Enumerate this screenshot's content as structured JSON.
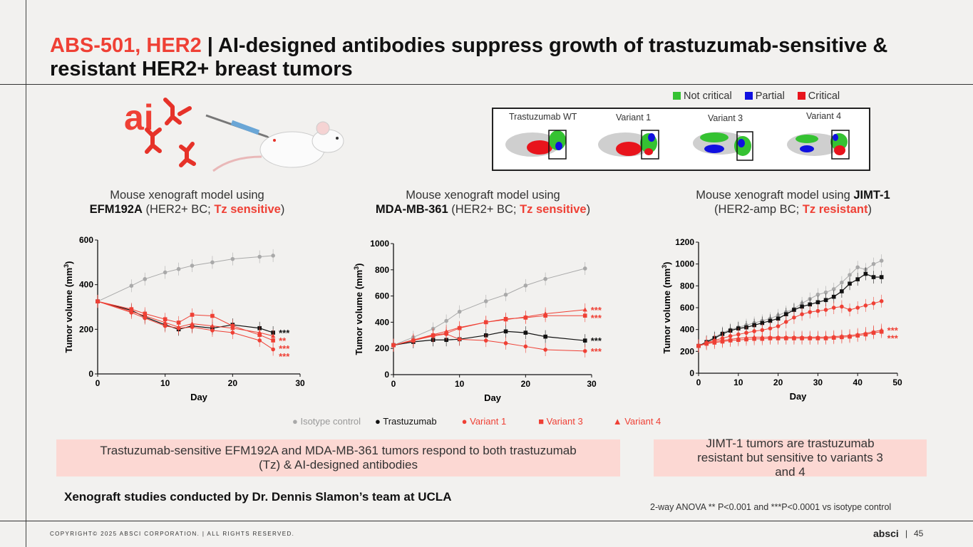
{
  "header": {
    "title_red": "ABS-501, HER2",
    "title_sep": " | ",
    "title_rest": "AI-designed antibodies suppress growth of trastuzumab-sensitive & resistant HER2+ breast tumors"
  },
  "logo_text": "ai",
  "structure_legend": {
    "items": [
      {
        "label": "Not critical",
        "color": "#35c232"
      },
      {
        "label": "Partial",
        "color": "#1010e0"
      },
      {
        "label": "Critical",
        "color": "#e8141c"
      }
    ]
  },
  "structure_panel": {
    "labels": [
      "Trastuzumab WT",
      "Variant 1",
      "Variant 3",
      "Variant 4"
    ]
  },
  "panels": [
    {
      "line1": "Mouse xenograft model using",
      "line2_bold": "EFM192A",
      "line2_mid": " (HER2+ BC; ",
      "line2_red": "Tz sensitive",
      "line2_end": ")"
    },
    {
      "line1": "Mouse xenograft model using",
      "line2_bold": "MDA-MB-361",
      "line2_mid": " (HER2+ BC; ",
      "line2_red": "Tz sensitive",
      "line2_end": ")"
    },
    {
      "line1": "Mouse xenograft model using ",
      "line1_bold": "JIMT-1",
      "line2_mid": "(HER2-amp BC; ",
      "line2_red": "Tz resistant",
      "line2_end": ")"
    }
  ],
  "series_legend": [
    {
      "marker": "●",
      "label": "Isotype control",
      "color": "#a9a9a9"
    },
    {
      "marker": "●",
      "label": "Trastuzumab",
      "color": "#111111"
    },
    {
      "marker": "●",
      "label": "Variant 1",
      "color": "#ef4035"
    },
    {
      "marker": "■",
      "label": "Variant 3",
      "color": "#ef4035"
    },
    {
      "marker": "▲",
      "label": "Variant 4",
      "color": "#ef4035"
    }
  ],
  "callouts": {
    "left": "Trastuzumab-sensitive EFM192A and MDA-MB-361 tumors respond to both trastuzumab (Tz) & AI-designed antibodies",
    "right": "JIMT-1 tumors are trastuzumab resistant but sensitive to variants 3 and 4"
  },
  "footer": {
    "credit": "Xenograft studies conducted by Dr. Dennis Slamon’s team at UCLA",
    "stats": "2-way ANOVA ** P<0.001 and ***P<0.0001 vs isotype control",
    "copyright": "COPYRIGHT© 2025 ABSCI CORPORATION.  |  ALL RIGHTS RESERVED.",
    "brand": "absci",
    "page_sep": "|",
    "page": "45"
  },
  "colors": {
    "accent": "#ef4035",
    "isotype": "#a9a9a9",
    "trastuzumab": "#111111",
    "variant": "#ef4035",
    "callout_bg": "#fcd8d3"
  },
  "chart_data": [
    {
      "type": "line",
      "xlabel": "Day",
      "ylabel": "Tumor volume (mm3)",
      "xlim": [
        0,
        30
      ],
      "ylim": [
        0,
        600
      ],
      "xticks": [
        0,
        10,
        20,
        30
      ],
      "yticks": [
        0,
        200,
        400,
        600
      ],
      "series": [
        {
          "name": "Isotype control",
          "x": [
            0,
            5,
            7,
            10,
            12,
            14,
            17,
            20,
            24,
            26
          ],
          "values": [
            325,
            395,
            425,
            455,
            470,
            485,
            500,
            515,
            525,
            530
          ]
        },
        {
          "name": "Trastuzumab",
          "x": [
            0,
            5,
            7,
            10,
            12,
            14,
            17,
            20,
            24,
            26
          ],
          "values": [
            325,
            285,
            255,
            220,
            200,
            215,
            205,
            220,
            205,
            185
          ],
          "sig": "***"
        },
        {
          "name": "Variant 1",
          "x": [
            0,
            5,
            7,
            10,
            12,
            14,
            17,
            20,
            24,
            26
          ],
          "values": [
            325,
            275,
            250,
            215,
            205,
            210,
            195,
            185,
            150,
            110
          ],
          "sig": "***"
        },
        {
          "name": "Variant 3",
          "x": [
            0,
            5,
            7,
            10,
            12,
            14,
            17,
            20,
            24,
            26
          ],
          "values": [
            325,
            290,
            270,
            245,
            230,
            265,
            260,
            215,
            175,
            150
          ],
          "sig": "***"
        },
        {
          "name": "Variant 4",
          "x": [
            0,
            5,
            7,
            10,
            12,
            14,
            17,
            20,
            24,
            26
          ],
          "values": [
            325,
            280,
            260,
            230,
            210,
            225,
            215,
            205,
            185,
            170
          ],
          "sig": "**"
        }
      ]
    },
    {
      "type": "line",
      "xlabel": "Day",
      "ylabel": "Tumor volume (mm3)",
      "xlim": [
        0,
        30
      ],
      "ylim": [
        0,
        1000
      ],
      "xticks": [
        0,
        10,
        20,
        30
      ],
      "yticks": [
        0,
        200,
        400,
        600,
        800,
        1000
      ],
      "series": [
        {
          "name": "Isotype control",
          "x": [
            0,
            3,
            6,
            8,
            10,
            14,
            17,
            20,
            23,
            29
          ],
          "values": [
            225,
            285,
            350,
            410,
            480,
            560,
            610,
            680,
            730,
            810
          ]
        },
        {
          "name": "Trastuzumab",
          "x": [
            0,
            3,
            6,
            8,
            10,
            14,
            17,
            20,
            23,
            29
          ],
          "values": [
            225,
            250,
            265,
            265,
            270,
            300,
            330,
            320,
            290,
            260
          ],
          "sig": "***"
        },
        {
          "name": "Variant 1",
          "x": [
            0,
            3,
            6,
            8,
            10,
            14,
            17,
            20,
            23,
            29
          ],
          "values": [
            225,
            260,
            295,
            310,
            270,
            260,
            240,
            215,
            190,
            180
          ],
          "sig": "***"
        },
        {
          "name": "Variant 3",
          "x": [
            0,
            3,
            6,
            8,
            10,
            14,
            17,
            20,
            23,
            29
          ],
          "values": [
            225,
            260,
            300,
            315,
            355,
            400,
            425,
            435,
            450,
            450
          ],
          "sig": "***"
        },
        {
          "name": "Variant 4",
          "x": [
            0,
            3,
            6,
            8,
            10,
            14,
            17,
            20,
            23,
            29
          ],
          "values": [
            225,
            265,
            305,
            330,
            360,
            400,
            420,
            440,
            465,
            495
          ],
          "sig": "***"
        }
      ]
    },
    {
      "type": "line",
      "xlabel": "Day",
      "ylabel": "Tumor volume (mm3)",
      "xlim": [
        0,
        50
      ],
      "ylim": [
        0,
        1200
      ],
      "xticks": [
        0,
        10,
        20,
        30,
        40,
        50
      ],
      "yticks": [
        0,
        200,
        400,
        600,
        800,
        1000,
        1200
      ],
      "series": [
        {
          "name": "Isotype control",
          "x": [
            0,
            2,
            4,
            6,
            8,
            10,
            12,
            14,
            16,
            18,
            20,
            22,
            24,
            26,
            28,
            30,
            32,
            34,
            36,
            38,
            40,
            42,
            44,
            46
          ],
          "values": [
            250,
            290,
            330,
            370,
            400,
            420,
            440,
            460,
            480,
            500,
            530,
            560,
            590,
            640,
            680,
            720,
            740,
            770,
            830,
            900,
            970,
            950,
            1000,
            1030
          ]
        },
        {
          "name": "Trastuzumab",
          "x": [
            0,
            2,
            4,
            6,
            8,
            10,
            12,
            14,
            16,
            18,
            20,
            22,
            24,
            26,
            28,
            30,
            32,
            34,
            36,
            38,
            40,
            42,
            44,
            46
          ],
          "values": [
            250,
            285,
            320,
            360,
            390,
            410,
            420,
            440,
            460,
            480,
            500,
            540,
            580,
            610,
            630,
            650,
            670,
            700,
            750,
            820,
            860,
            910,
            880,
            880
          ]
        },
        {
          "name": "Variant 1",
          "x": [
            0,
            2,
            4,
            6,
            8,
            10,
            12,
            14,
            16,
            18,
            20,
            22,
            24,
            26,
            28,
            30,
            32,
            34,
            36,
            38,
            40,
            42,
            44,
            46
          ],
          "values": [
            250,
            280,
            300,
            320,
            340,
            355,
            370,
            385,
            395,
            410,
            430,
            470,
            510,
            540,
            560,
            570,
            580,
            600,
            610,
            580,
            600,
            620,
            640,
            660
          ]
        },
        {
          "name": "Variant 3",
          "x": [
            0,
            2,
            4,
            6,
            8,
            10,
            12,
            14,
            16,
            18,
            20,
            22,
            24,
            26,
            28,
            30,
            32,
            34,
            36,
            38,
            40,
            42,
            44,
            46
          ],
          "values": [
            250,
            270,
            280,
            290,
            300,
            305,
            310,
            315,
            315,
            320,
            320,
            320,
            320,
            320,
            320,
            320,
            320,
            325,
            330,
            335,
            345,
            355,
            370,
            380
          ],
          "sig": "***"
        },
        {
          "name": "Variant 4",
          "x": [
            0,
            2,
            4,
            6,
            8,
            10,
            12,
            14,
            16,
            18,
            20,
            22,
            24,
            26,
            28,
            30,
            32,
            34,
            36,
            38,
            40,
            42,
            44,
            46
          ],
          "values": [
            250,
            275,
            290,
            300,
            310,
            320,
            325,
            330,
            330,
            330,
            330,
            330,
            330,
            330,
            330,
            330,
            330,
            335,
            340,
            345,
            355,
            365,
            380,
            395
          ],
          "sig": "***"
        }
      ]
    }
  ]
}
